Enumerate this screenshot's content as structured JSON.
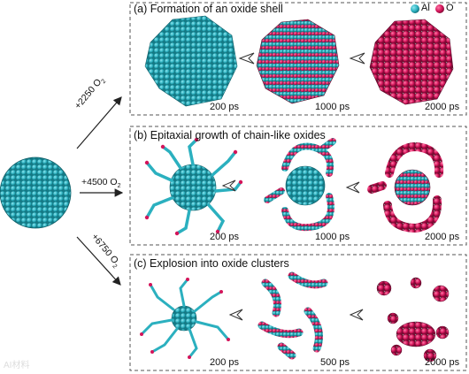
{
  "legend": {
    "al": "Al",
    "o": "O"
  },
  "colors": {
    "al": "#2bb0bf",
    "al_dark": "#147a86",
    "o": "#d4145a",
    "border": "#555555",
    "arrow": "#222222"
  },
  "arrows": {
    "a": {
      "value": "+2250 O",
      "sub": "2"
    },
    "b": {
      "value": "+4500 O",
      "sub": "2"
    },
    "c": {
      "value": "+6750 O",
      "sub": "2"
    }
  },
  "panels": [
    {
      "title": "(a) Formation of an oxide shell",
      "times": [
        "200 ps",
        "1000 ps",
        "2000 ps"
      ]
    },
    {
      "title": "(b) Epitaxial growth of chain-like oxides",
      "times": [
        "200 ps",
        "1000 ps",
        "2000 ps"
      ]
    },
    {
      "title": "(c) Explosion into oxide clusters",
      "times": [
        "200 ps",
        "500 ps",
        "2000 ps"
      ]
    }
  ],
  "watermark": "AI材料"
}
